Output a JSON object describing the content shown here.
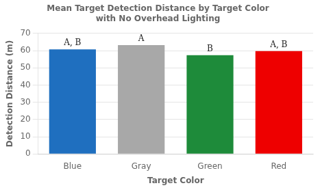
{
  "chart_data": {
    "type": "bar",
    "title": "Mean Target Detection Distance by Target Color",
    "subtitle": "with No Overhead Lighting",
    "xlabel": "Target Color",
    "ylabel": "Detection Distance (m)",
    "categories": [
      "Blue",
      "Gray",
      "Green",
      "Red"
    ],
    "values": [
      60.7,
      63.2,
      57.3,
      59.7
    ],
    "colors": [
      "#1F6FBF",
      "#A8A8A8",
      "#1E8B3A",
      "#EE0000"
    ],
    "annotations": [
      "A, B",
      "A",
      "B",
      "A, B"
    ],
    "ylim": [
      0,
      70
    ],
    "yticks": [
      0,
      10,
      20,
      30,
      40,
      50,
      60,
      70
    ],
    "grid": true
  }
}
